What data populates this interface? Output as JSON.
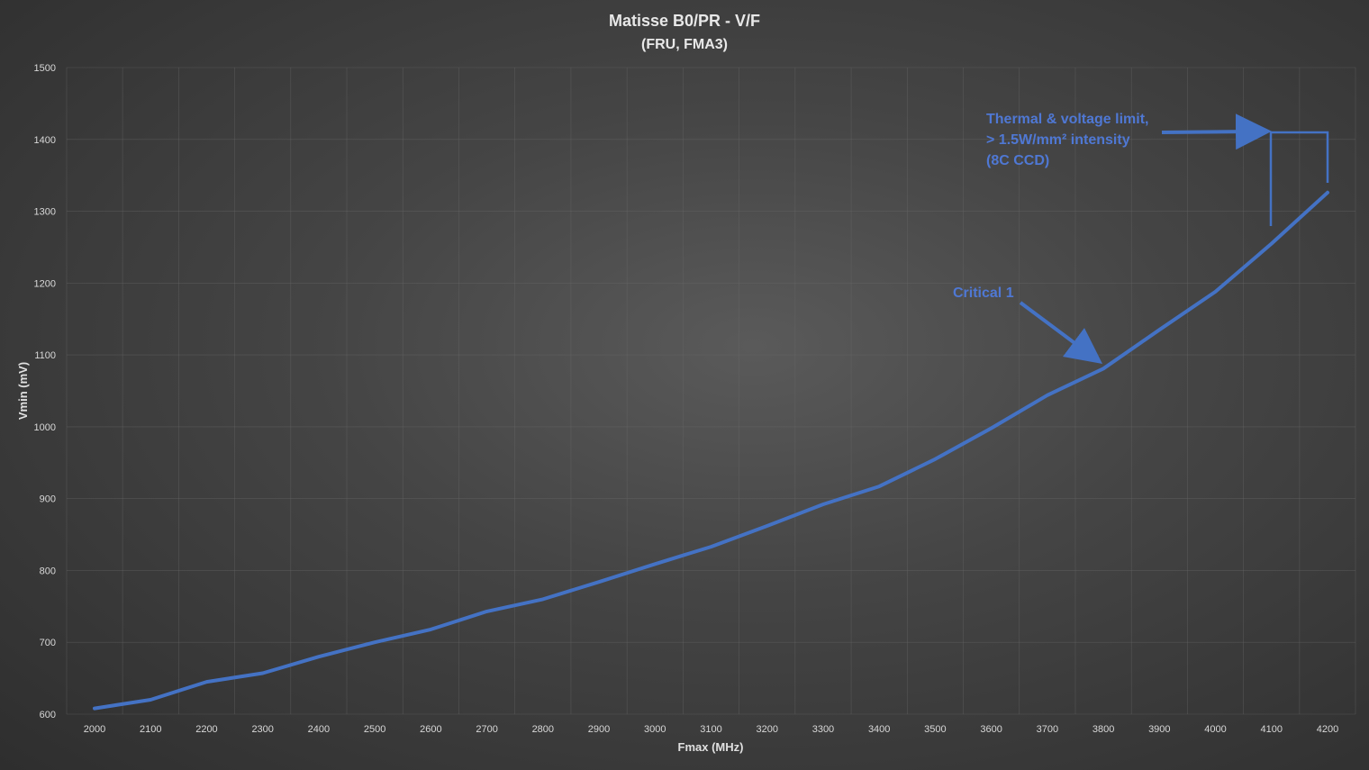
{
  "chart_data": {
    "type": "line",
    "title": "Matisse  B0/PR - V/F",
    "subtitle": "(FRU, FMA3)",
    "xlabel": "Fmax (MHz)",
    "ylabel": "Vmin (mV)",
    "xlim": [
      2000,
      4200
    ],
    "ylim": [
      600,
      1500
    ],
    "x_ticks": [
      2000,
      2100,
      2200,
      2300,
      2400,
      2500,
      2600,
      2700,
      2800,
      2900,
      3000,
      3100,
      3200,
      3300,
      3400,
      3500,
      3600,
      3700,
      3800,
      3900,
      4000,
      4100,
      4200
    ],
    "y_ticks": [
      600,
      700,
      800,
      900,
      1000,
      1100,
      1200,
      1300,
      1400,
      1500
    ],
    "grid": true,
    "series": [
      {
        "name": "",
        "color": "#4472c4",
        "x": [
          2000,
          2100,
          2200,
          2300,
          2400,
          2500,
          2600,
          2700,
          2800,
          2900,
          3000,
          3100,
          3200,
          3300,
          3400,
          3500,
          3600,
          3700,
          3800,
          3900,
          4000,
          4100,
          4200
        ],
        "values": [
          608,
          620,
          645,
          657,
          680,
          700,
          718,
          743,
          760,
          784,
          809,
          833,
          862,
          892,
          917,
          955,
          998,
          1044,
          1081,
          1135,
          1188,
          1255,
          1326
        ]
      }
    ],
    "annotations": [
      {
        "id": "critical",
        "lines": [
          "Critical 1"
        ]
      },
      {
        "id": "limit",
        "lines": [
          "Thermal & voltage limit,",
          "> 1.5W/mm² intensity",
          "(8C CCD)"
        ]
      }
    ],
    "annotation_color": "#4472c4"
  }
}
